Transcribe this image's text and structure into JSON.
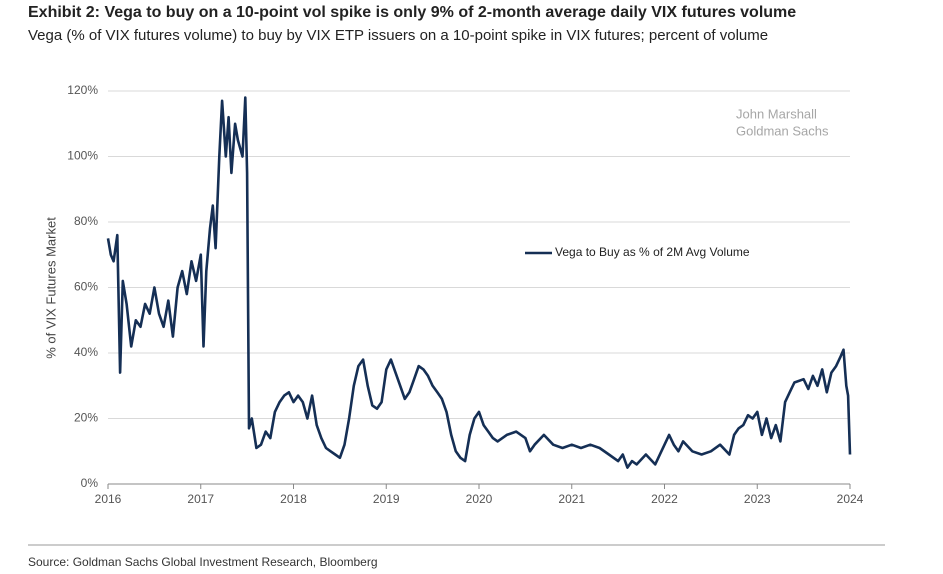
{
  "chart_data": {
    "type": "line",
    "title": "Exhibit 2: Vega to buy on a 10-point vol spike is only 9% of 2-month average daily VIX futures volume",
    "subtitle": "Vega (% of VIX futures volume) to buy by VIX ETP issuers on a 10-point spike in VIX futures; percent of volume",
    "y_label": "% of VIX Futures Market",
    "annotations": [
      "John Marshall",
      "Goldman Sachs"
    ],
    "source": "Source: Goldman Sachs Global Investment Research, Bloomberg",
    "x": [
      2016.0,
      2016.03,
      2016.06,
      2016.1,
      2016.13,
      2016.16,
      2016.2,
      2016.25,
      2016.3,
      2016.35,
      2016.4,
      2016.45,
      2016.5,
      2016.55,
      2016.6,
      2016.65,
      2016.7,
      2016.75,
      2016.8,
      2016.85,
      2016.9,
      2016.95,
      2017.0,
      2017.03,
      2017.06,
      2017.1,
      2017.13,
      2017.16,
      2017.2,
      2017.23,
      2017.27,
      2017.3,
      2017.33,
      2017.37,
      2017.4,
      2017.45,
      2017.48,
      2017.5,
      2017.52,
      2017.55,
      2017.6,
      2017.65,
      2017.7,
      2017.75,
      2017.8,
      2017.85,
      2017.9,
      2017.95,
      2018.0,
      2018.05,
      2018.1,
      2018.15,
      2018.2,
      2018.25,
      2018.3,
      2018.35,
      2018.4,
      2018.45,
      2018.5,
      2018.55,
      2018.6,
      2018.65,
      2018.7,
      2018.75,
      2018.8,
      2018.85,
      2018.9,
      2018.95,
      2019.0,
      2019.05,
      2019.1,
      2019.15,
      2019.2,
      2019.25,
      2019.3,
      2019.35,
      2019.4,
      2019.45,
      2019.5,
      2019.55,
      2019.6,
      2019.65,
      2019.7,
      2019.75,
      2019.8,
      2019.85,
      2019.9,
      2019.95,
      2020.0,
      2020.05,
      2020.1,
      2020.15,
      2020.2,
      2020.3,
      2020.4,
      2020.5,
      2020.55,
      2020.6,
      2020.7,
      2020.8,
      2020.9,
      2021.0,
      2021.1,
      2021.2,
      2021.3,
      2021.4,
      2021.5,
      2021.55,
      2021.6,
      2021.65,
      2021.7,
      2021.8,
      2021.9,
      2022.0,
      2022.05,
      2022.1,
      2022.15,
      2022.2,
      2022.3,
      2022.4,
      2022.5,
      2022.6,
      2022.7,
      2022.75,
      2022.8,
      2022.85,
      2022.9,
      2022.95,
      2023.0,
      2023.05,
      2023.1,
      2023.15,
      2023.2,
      2023.25,
      2023.3,
      2023.35,
      2023.4,
      2023.5,
      2023.55,
      2023.6,
      2023.65,
      2023.7,
      2023.75,
      2023.8,
      2023.85,
      2023.9,
      2023.93,
      2023.96,
      2023.98,
      2024.0
    ],
    "series": [
      {
        "name": "Vega to Buy as % of 2M Avg Volume",
        "color": "#152f55",
        "values": [
          75,
          70,
          68,
          76,
          34,
          62,
          55,
          42,
          50,
          48,
          55,
          52,
          60,
          52,
          48,
          56,
          45,
          60,
          65,
          58,
          68,
          62,
          70,
          42,
          65,
          78,
          85,
          72,
          100,
          117,
          100,
          112,
          95,
          110,
          105,
          100,
          118,
          95,
          17,
          20,
          11,
          12,
          16,
          14,
          22,
          25,
          27,
          28,
          25,
          27,
          25,
          20,
          27,
          18,
          14,
          11,
          10,
          9,
          8,
          12,
          20,
          30,
          36,
          38,
          30,
          24,
          23,
          25,
          35,
          38,
          34,
          30,
          26,
          28,
          32,
          36,
          35,
          33,
          30,
          28,
          26,
          22,
          15,
          10,
          8,
          7,
          15,
          20,
          22,
          18,
          16,
          14,
          13,
          15,
          16,
          14,
          10,
          12,
          15,
          12,
          11,
          12,
          11,
          12,
          11,
          9,
          7,
          9,
          5,
          7,
          6,
          9,
          6,
          12,
          15,
          12,
          10,
          13,
          10,
          9,
          10,
          12,
          9,
          15,
          17,
          18,
          21,
          20,
          22,
          15,
          20,
          14,
          18,
          13,
          25,
          28,
          31,
          32,
          29,
          33,
          30,
          35,
          28,
          34,
          36,
          39,
          41,
          30,
          27,
          9
        ]
      }
    ],
    "xlim": [
      2016,
      2024
    ],
    "xticks": [
      2016,
      2017,
      2018,
      2019,
      2020,
      2021,
      2022,
      2023,
      2024
    ],
    "ylim": [
      0,
      120
    ],
    "yticks": [
      {
        "value": 0,
        "label": "0%"
      },
      {
        "value": 20,
        "label": "20%"
      },
      {
        "value": 40,
        "label": "40%"
      },
      {
        "value": 60,
        "label": "60%"
      },
      {
        "value": 80,
        "label": "80%"
      },
      {
        "value": 100,
        "label": "100%"
      },
      {
        "value": 120,
        "label": "120%"
      }
    ],
    "grid": true
  }
}
